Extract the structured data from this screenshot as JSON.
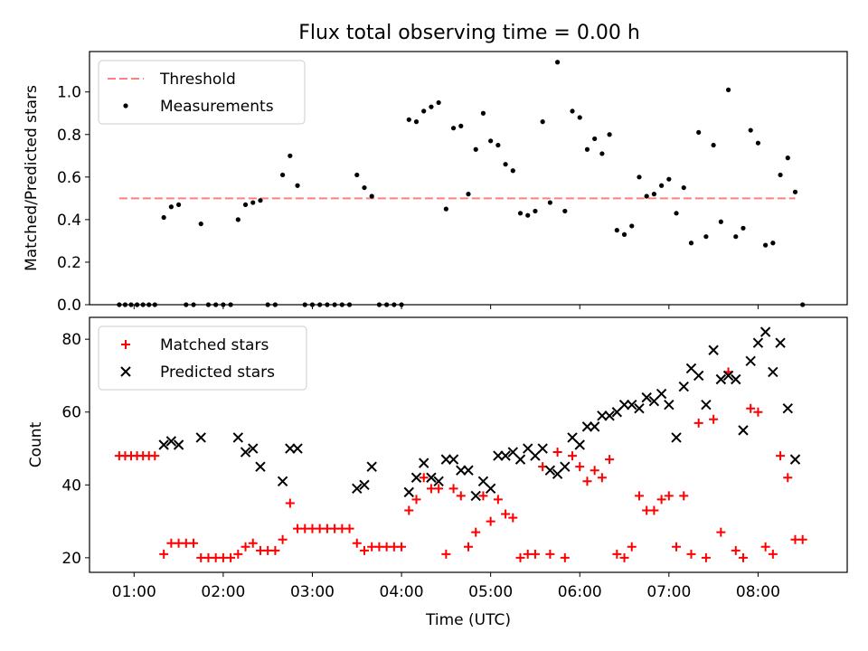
{
  "chart_data": [
    {
      "type": "scatter",
      "title": "Flux total observing time = 0.00 h",
      "ylabel": "Matched/Predicted stars",
      "ylim": [
        0,
        1.19
      ],
      "yticks": [
        "0.0",
        "0.2",
        "0.4",
        "0.6",
        "0.8",
        "1.0"
      ],
      "grid": false,
      "legend_position": "top-left",
      "threshold": {
        "name": "Threshold",
        "value": 0.5,
        "x_range": [
          "00:50",
          "08:25"
        ],
        "color": "#ff7f7f"
      },
      "series": [
        {
          "name": "Measurements",
          "marker": "dot",
          "color": "#000000",
          "x": [
            "00:50",
            "00:54",
            "00:58",
            "01:02",
            "01:06",
            "01:10",
            "01:14",
            "01:20",
            "01:25",
            "01:30",
            "01:35",
            "01:40",
            "01:45",
            "01:50",
            "01:55",
            "02:00",
            "02:05",
            "02:10",
            "02:15",
            "02:20",
            "02:25",
            "02:30",
            "02:35",
            "02:40",
            "02:45",
            "02:50",
            "02:55",
            "03:00",
            "03:05",
            "03:10",
            "03:15",
            "03:20",
            "03:25",
            "03:30",
            "03:35",
            "03:40",
            "03:45",
            "03:50",
            "03:55",
            "04:00",
            "04:05",
            "04:10",
            "04:15",
            "04:20",
            "04:25",
            "04:30",
            "04:35",
            "04:40",
            "04:45",
            "04:50",
            "04:55",
            "05:00",
            "05:05",
            "05:10",
            "05:15",
            "05:20",
            "05:25",
            "05:30",
            "05:35",
            "05:40",
            "05:45",
            "05:50",
            "05:55",
            "06:00",
            "06:05",
            "06:10",
            "06:15",
            "06:20",
            "06:25",
            "06:30",
            "06:35",
            "06:40",
            "06:45",
            "06:50",
            "06:55",
            "07:00",
            "07:05",
            "07:10",
            "07:15",
            "07:20",
            "07:25",
            "07:30",
            "07:35",
            "07:40",
            "07:45",
            "07:50",
            "07:55",
            "08:00",
            "08:05",
            "08:10",
            "08:15",
            "08:20",
            "08:25",
            "08:30"
          ],
          "y": [
            0,
            0,
            0,
            0,
            0,
            0,
            0,
            0.41,
            0.46,
            0.47,
            0,
            0,
            0.38,
            0,
            0,
            0,
            0,
            0.4,
            0.47,
            0.48,
            0.49,
            0,
            0,
            0.61,
            0.7,
            0.56,
            0,
            0,
            0,
            0,
            0,
            0,
            0,
            0.61,
            0.55,
            0.51,
            0,
            0,
            0,
            0,
            0.87,
            0.86,
            0.91,
            0.93,
            0.95,
            0.45,
            0.83,
            0.84,
            0.52,
            0.73,
            0.9,
            0.77,
            0.75,
            0.66,
            0.63,
            0.43,
            0.42,
            0.44,
            0.86,
            0.48,
            1.14,
            0.44,
            0.91,
            0.88,
            0.73,
            0.78,
            0.71,
            0.8,
            0.35,
            0.33,
            0.37,
            0.6,
            0.51,
            0.52,
            0.56,
            0.59,
            0.43,
            0.55,
            0.29,
            0.81,
            0.32,
            0.75,
            0.39,
            1.01,
            0.32,
            0.36,
            0.82,
            0.76,
            0.28,
            0.29,
            0.61,
            0.69,
            0.53,
            0
          ]
        }
      ]
    },
    {
      "type": "scatter",
      "xlabel": "Time (UTC)",
      "ylabel": "Count",
      "ylim": [
        16,
        86
      ],
      "yticks": [
        "20",
        "40",
        "60",
        "80"
      ],
      "xticks": [
        "01:00",
        "02:00",
        "03:00",
        "04:00",
        "05:00",
        "06:00",
        "07:00",
        "08:00"
      ],
      "xlim": [
        "00:30",
        "09:00"
      ],
      "grid": false,
      "legend_position": "top-left",
      "series": [
        {
          "name": "Matched stars",
          "marker": "plus",
          "color": "#ff0000",
          "x": [
            "00:50",
            "00:54",
            "00:58",
            "01:02",
            "01:06",
            "01:10",
            "01:14",
            "01:20",
            "01:25",
            "01:30",
            "01:35",
            "01:40",
            "01:45",
            "01:50",
            "01:55",
            "02:00",
            "02:05",
            "02:10",
            "02:15",
            "02:20",
            "02:25",
            "02:30",
            "02:35",
            "02:40",
            "02:45",
            "02:50",
            "02:55",
            "03:00",
            "03:05",
            "03:10",
            "03:15",
            "03:20",
            "03:25",
            "03:30",
            "03:35",
            "03:40",
            "03:45",
            "03:50",
            "03:55",
            "04:00",
            "04:05",
            "04:10",
            "04:15",
            "04:20",
            "04:25",
            "04:30",
            "04:35",
            "04:40",
            "04:45",
            "04:50",
            "04:55",
            "05:00",
            "05:05",
            "05:10",
            "05:15",
            "05:20",
            "05:25",
            "05:30",
            "05:35",
            "05:40",
            "05:45",
            "05:50",
            "05:55",
            "06:00",
            "06:05",
            "06:10",
            "06:15",
            "06:20",
            "06:25",
            "06:30",
            "06:35",
            "06:40",
            "06:45",
            "06:50",
            "06:55",
            "07:00",
            "07:05",
            "07:10",
            "07:15",
            "07:20",
            "07:25",
            "07:30",
            "07:35",
            "07:40",
            "07:45",
            "07:50",
            "07:55",
            "08:00",
            "08:05",
            "08:10",
            "08:15",
            "08:20",
            "08:25",
            "08:30"
          ],
          "y": [
            48,
            48,
            48,
            48,
            48,
            48,
            48,
            21,
            24,
            24,
            24,
            24,
            20,
            20,
            20,
            20,
            20,
            21,
            23,
            24,
            22,
            22,
            22,
            25,
            35,
            28,
            28,
            28,
            28,
            28,
            28,
            28,
            28,
            24,
            22,
            23,
            23,
            23,
            23,
            23,
            33,
            36,
            42,
            39,
            39,
            21,
            39,
            37,
            23,
            27,
            37,
            30,
            36,
            32,
            31,
            20,
            21,
            21,
            45,
            21,
            49,
            20,
            48,
            45,
            41,
            44,
            42,
            47,
            21,
            20,
            23,
            37,
            33,
            33,
            36,
            37,
            23,
            37,
            21,
            57,
            20,
            58,
            27,
            71,
            22,
            20,
            61,
            60,
            23,
            21,
            48,
            42,
            25,
            25
          ]
        },
        {
          "name": "Predicted stars",
          "marker": "x",
          "color": "#000000",
          "x": [
            "01:20",
            "01:25",
            "01:30",
            "01:45",
            "02:10",
            "02:15",
            "02:20",
            "02:25",
            "02:40",
            "02:45",
            "02:50",
            "03:30",
            "03:35",
            "03:40",
            "04:05",
            "04:10",
            "04:15",
            "04:20",
            "04:25",
            "04:30",
            "04:35",
            "04:40",
            "04:45",
            "04:50",
            "04:55",
            "05:00",
            "05:05",
            "05:10",
            "05:15",
            "05:20",
            "05:25",
            "05:30",
            "05:35",
            "05:40",
            "05:45",
            "05:50",
            "05:55",
            "06:00",
            "06:05",
            "06:10",
            "06:15",
            "06:20",
            "06:25",
            "06:30",
            "06:35",
            "06:40",
            "06:45",
            "06:50",
            "06:55",
            "07:00",
            "07:05",
            "07:10",
            "07:15",
            "07:20",
            "07:25",
            "07:30",
            "07:35",
            "07:40",
            "07:45",
            "07:50",
            "07:55",
            "08:00",
            "08:05",
            "08:10",
            "08:15",
            "08:20",
            "08:25"
          ],
          "y": [
            51,
            52,
            51,
            53,
            53,
            49,
            50,
            45,
            41,
            50,
            50,
            39,
            40,
            45,
            38,
            42,
            46,
            42,
            41,
            47,
            47,
            44,
            44,
            37,
            41,
            39,
            48,
            48,
            49,
            47,
            50,
            48,
            50,
            44,
            43,
            45,
            53,
            51,
            56,
            56,
            59,
            59,
            60,
            62,
            62,
            61,
            64,
            63,
            65,
            62,
            53,
            67,
            72,
            70,
            62,
            77,
            69,
            70,
            69,
            55,
            74,
            79,
            82,
            71,
            79,
            61,
            47
          ]
        }
      ]
    }
  ]
}
